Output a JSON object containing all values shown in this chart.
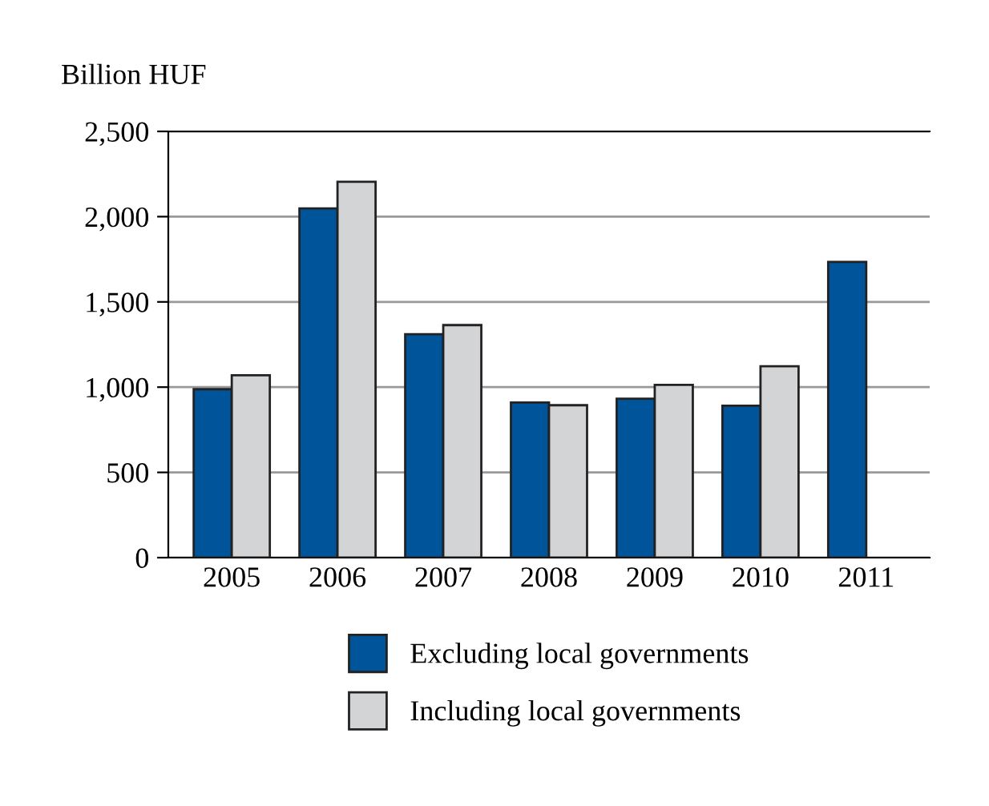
{
  "chart_data": {
    "type": "bar",
    "ylabel": "Billion HUF",
    "categories": [
      "2005",
      "2006",
      "2007",
      "2008",
      "2009",
      "2010",
      "2011"
    ],
    "series": [
      {
        "name": "Excluding local governments",
        "color": "#00559a",
        "values": [
          988,
          2048,
          1311,
          910,
          932,
          891,
          1735
        ]
      },
      {
        "name": "Including local governments",
        "color": "#d3d4d6",
        "values": [
          1070,
          2205,
          1364,
          894,
          1013,
          1123,
          null
        ]
      }
    ],
    "ylim": [
      0,
      2500
    ],
    "yticks": [
      {
        "value": 0,
        "label": "0"
      },
      {
        "value": 500,
        "label": "500"
      },
      {
        "value": 1000,
        "label": "1,000"
      },
      {
        "value": 1500,
        "label": "1,500"
      },
      {
        "value": 2000,
        "label": "2,000"
      },
      {
        "value": 2500,
        "label": "2,500"
      }
    ],
    "grid": "y",
    "legend": "bottom"
  }
}
